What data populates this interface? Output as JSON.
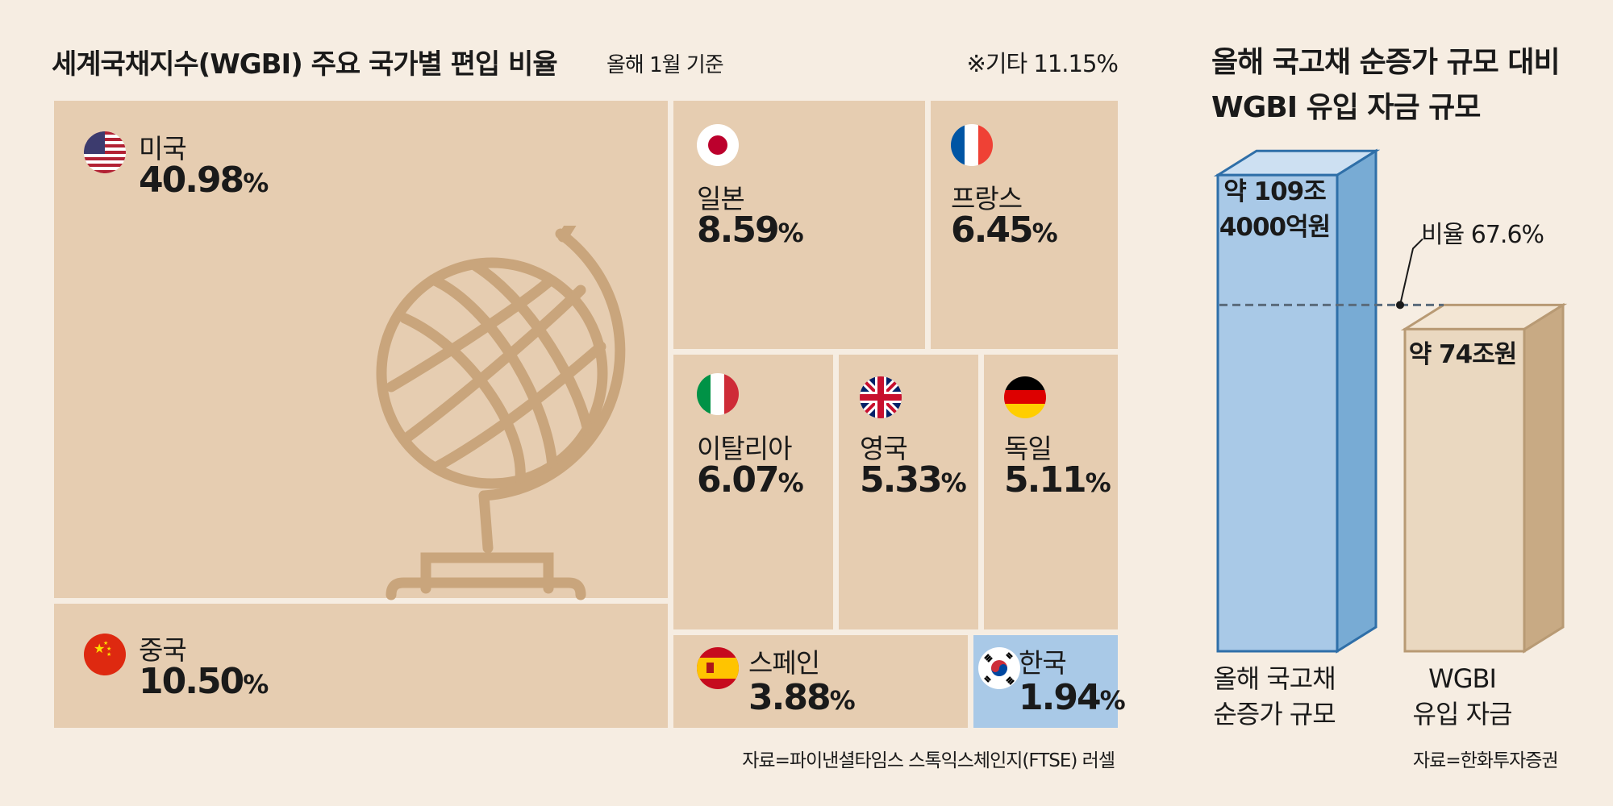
{
  "left_title": "세계국채지수(WGBI) 주요 국가별 편입 비율",
  "left_subtitle": "올해 1월 기준",
  "etc_note": "※기타 11.15%",
  "left_source": "자료=파이낸셜타임스 스톡익스체인지(FTSE) 러셀",
  "right_title": "올해 국고채 순증가 규모 대비 WGBI 유입 자금 규모",
  "right_source": "자료=한화투자증권",
  "colors": {
    "cell": "#e6cdb1",
    "korea": "#a9c9e7",
    "bar_blue": "#a9c9e7",
    "bar_beige": "#ead8c0",
    "globe": "#c9a57c"
  },
  "chart_data": [
    {
      "type": "treemap",
      "title": "세계국채지수(WGBI) 주요 국가별 편입 비율",
      "subtitle": "올해 1월 기준",
      "unit": "%",
      "items": [
        {
          "country": "미국",
          "value_text": "40.98",
          "value": 40.98,
          "flag": "usa-flag-icon"
        },
        {
          "country": "중국",
          "value_text": "10.50",
          "value": 10.5,
          "flag": "china-flag-icon"
        },
        {
          "country": "일본",
          "value_text": "8.59",
          "value": 8.59,
          "flag": "japan-flag-icon"
        },
        {
          "country": "프랑스",
          "value_text": "6.45",
          "value": 6.45,
          "flag": "france-flag-icon"
        },
        {
          "country": "이탈리아",
          "value_text": "6.07",
          "value": 6.07,
          "flag": "italy-flag-icon"
        },
        {
          "country": "영국",
          "value_text": "5.33",
          "value": 5.33,
          "flag": "uk-flag-icon"
        },
        {
          "country": "독일",
          "value_text": "5.11",
          "value": 5.11,
          "flag": "germany-flag-icon"
        },
        {
          "country": "스페인",
          "value_text": "3.88",
          "value": 3.88,
          "flag": "spain-flag-icon"
        },
        {
          "country": "한국",
          "value_text": "1.94",
          "value": 1.94,
          "flag": "korea-flag-icon"
        }
      ],
      "other": 11.15
    },
    {
      "type": "bar",
      "title": "올해 국고채 순증가 규모 대비 WGBI 유입 자금 규모",
      "categories": [
        "올해 국고채 순증가 규모",
        "WGBI 유입 자금"
      ],
      "category_lines": [
        [
          "올해 국고채",
          "순증가 규모"
        ],
        [
          "WGBI",
          "유입 자금"
        ]
      ],
      "values": [
        109.4,
        74
      ],
      "unit": "조원",
      "value_labels": [
        [
          "약 109조",
          "4000억원"
        ],
        [
          "약 74조원"
        ]
      ],
      "ratio_label": "비율 67.6%",
      "ratio": 67.6
    }
  ]
}
